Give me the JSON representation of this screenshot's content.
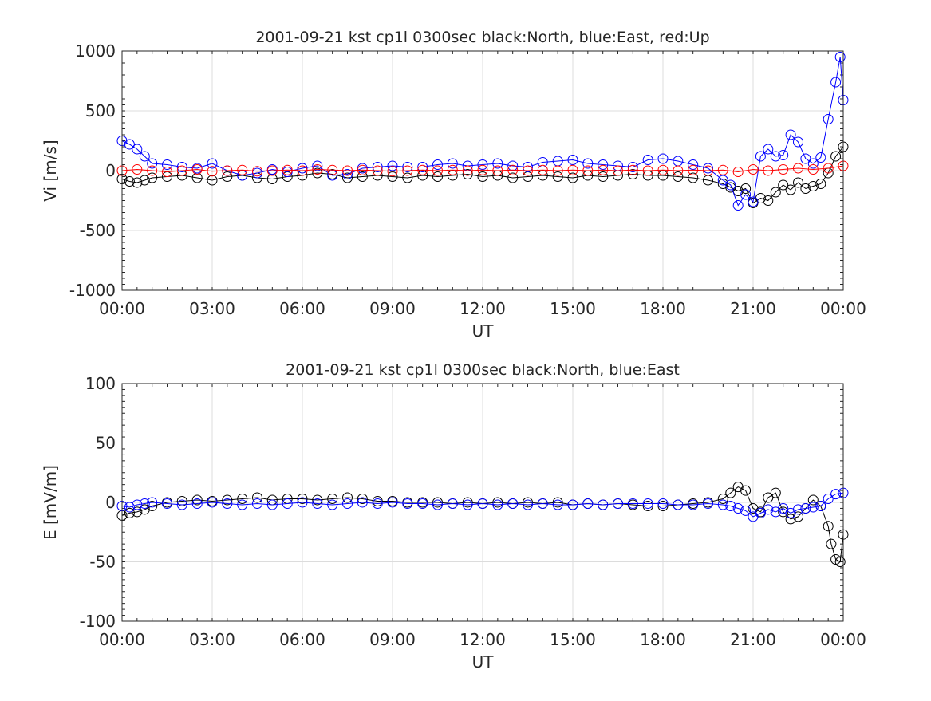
{
  "chart_data": [
    {
      "type": "line",
      "title": "2001-09-21 kst cp1l 0300sec black:North, blue:East, red:Up",
      "xlabel": "UT",
      "ylabel": "Vi [m/s]",
      "xlim": [
        0,
        24
      ],
      "ylim": [
        -1000,
        1000
      ],
      "xticks": [
        0,
        3,
        6,
        9,
        12,
        15,
        18,
        21,
        24
      ],
      "xticklabels": [
        "00:00",
        "03:00",
        "06:00",
        "09:00",
        "12:00",
        "15:00",
        "18:00",
        "21:00",
        "00:00"
      ],
      "yticks": [
        -1000,
        -500,
        0,
        500,
        1000
      ],
      "yticklabels": [
        "-1000",
        "-500",
        "0",
        "500",
        "1000"
      ],
      "grid": true,
      "series": [
        {
          "name": "North",
          "color": "#000000",
          "x": [
            0.0,
            0.25,
            0.5,
            0.75,
            1.0,
            1.5,
            2.0,
            2.5,
            3.0,
            3.5,
            4.0,
            4.5,
            5.0,
            5.5,
            6.0,
            6.5,
            7.0,
            7.5,
            8.0,
            8.5,
            9.0,
            9.5,
            10.0,
            10.5,
            11.0,
            11.5,
            12.0,
            12.5,
            13.0,
            13.5,
            14.0,
            14.5,
            15.0,
            15.5,
            16.0,
            16.5,
            17.0,
            17.5,
            18.0,
            18.5,
            19.0,
            19.5,
            20.0,
            20.25,
            20.5,
            20.75,
            21.0,
            21.25,
            21.5,
            21.75,
            22.0,
            22.25,
            22.5,
            22.75,
            23.0,
            23.25,
            23.5,
            23.75,
            24.0
          ],
          "values": [
            -70,
            -90,
            -100,
            -80,
            -60,
            -50,
            -40,
            -60,
            -80,
            -50,
            -40,
            -60,
            -70,
            -50,
            -40,
            -20,
            -30,
            -60,
            -50,
            -40,
            -50,
            -60,
            -40,
            -50,
            -40,
            -30,
            -50,
            -40,
            -60,
            -50,
            -40,
            -50,
            -60,
            -40,
            -50,
            -40,
            -30,
            -40,
            -40,
            -50,
            -60,
            -80,
            -110,
            -140,
            -170,
            -150,
            -270,
            -230,
            -250,
            -180,
            -120,
            -160,
            -100,
            -150,
            -130,
            -110,
            -20,
            120,
            200
          ]
        },
        {
          "name": "East",
          "color": "#0000ff",
          "x": [
            0.0,
            0.25,
            0.5,
            0.75,
            1.0,
            1.5,
            2.0,
            2.5,
            3.0,
            3.5,
            4.0,
            4.5,
            5.0,
            5.5,
            6.0,
            6.5,
            7.0,
            7.5,
            8.0,
            8.5,
            9.0,
            9.5,
            10.0,
            10.5,
            11.0,
            11.5,
            12.0,
            12.5,
            13.0,
            13.5,
            14.0,
            14.5,
            15.0,
            15.5,
            16.0,
            16.5,
            17.0,
            17.5,
            18.0,
            18.5,
            19.0,
            19.5,
            20.0,
            20.25,
            20.5,
            20.75,
            21.0,
            21.25,
            21.5,
            21.75,
            22.0,
            22.25,
            22.5,
            22.75,
            23.0,
            23.25,
            23.5,
            23.75,
            23.9,
            24.0
          ],
          "values": [
            250,
            220,
            180,
            120,
            60,
            50,
            30,
            20,
            60,
            0,
            -40,
            -20,
            10,
            -10,
            20,
            40,
            -40,
            -30,
            20,
            30,
            40,
            30,
            30,
            50,
            60,
            40,
            50,
            60,
            40,
            30,
            70,
            80,
            90,
            60,
            50,
            40,
            30,
            90,
            100,
            80,
            50,
            20,
            -80,
            -120,
            -290,
            -200,
            -260,
            120,
            180,
            120,
            130,
            300,
            240,
            100,
            60,
            110,
            430,
            740,
            950,
            590
          ]
        },
        {
          "name": "Up",
          "color": "#ff0000",
          "x": [
            0.0,
            0.5,
            1.0,
            1.5,
            2.0,
            2.5,
            3.0,
            3.5,
            4.0,
            4.5,
            5.0,
            5.5,
            6.0,
            6.5,
            7.0,
            7.5,
            8.0,
            8.5,
            9.0,
            9.5,
            10.0,
            10.5,
            11.0,
            11.5,
            12.0,
            12.5,
            13.0,
            13.5,
            14.0,
            14.5,
            15.0,
            15.5,
            16.0,
            16.5,
            17.0,
            17.5,
            18.0,
            18.5,
            19.0,
            19.5,
            20.0,
            20.5,
            21.0,
            21.5,
            22.0,
            22.5,
            23.0,
            23.5,
            24.0
          ],
          "values": [
            0,
            10,
            0,
            -10,
            0,
            10,
            -5,
            0,
            5,
            -5,
            0,
            5,
            0,
            10,
            5,
            0,
            5,
            0,
            -5,
            0,
            5,
            0,
            5,
            0,
            5,
            0,
            5,
            0,
            5,
            0,
            5,
            0,
            5,
            0,
            5,
            0,
            5,
            0,
            5,
            0,
            5,
            -10,
            10,
            0,
            10,
            20,
            10,
            20,
            40
          ]
        }
      ]
    },
    {
      "type": "line",
      "title": "2001-09-21 kst cp1l 0300sec black:North, blue:East",
      "xlabel": "UT",
      "ylabel": "E [mV/m]",
      "xlim": [
        0,
        24
      ],
      "ylim": [
        -100,
        100
      ],
      "xticks": [
        0,
        3,
        6,
        9,
        12,
        15,
        18,
        21,
        24
      ],
      "xticklabels": [
        "00:00",
        "03:00",
        "06:00",
        "09:00",
        "12:00",
        "15:00",
        "18:00",
        "21:00",
        "00:00"
      ],
      "yticks": [
        -100,
        -50,
        0,
        50,
        100
      ],
      "yticklabels": [
        "-100",
        "-50",
        "0",
        "50",
        "100"
      ],
      "grid": true,
      "series": [
        {
          "name": "North",
          "color": "#000000",
          "x": [
            0.0,
            0.25,
            0.5,
            0.75,
            1.0,
            1.5,
            2.0,
            2.5,
            3.0,
            3.5,
            4.0,
            4.5,
            5.0,
            5.5,
            6.0,
            6.5,
            7.0,
            7.5,
            8.0,
            8.5,
            9.0,
            9.5,
            10.0,
            10.5,
            11.0,
            11.5,
            12.0,
            12.5,
            13.0,
            13.5,
            14.0,
            14.5,
            15.0,
            15.5,
            16.0,
            16.5,
            17.0,
            17.5,
            18.0,
            18.5,
            19.0,
            19.5,
            20.0,
            20.25,
            20.5,
            20.75,
            21.0,
            21.25,
            21.5,
            21.75,
            22.0,
            22.25,
            22.5,
            22.75,
            23.0,
            23.25,
            23.5,
            23.6,
            23.75,
            23.9,
            24.0
          ],
          "values": [
            -11,
            -9,
            -8,
            -6,
            -3,
            0,
            1,
            2,
            1,
            2,
            3,
            4,
            2,
            3,
            3,
            2,
            3,
            4,
            3,
            1,
            1,
            0,
            0,
            0,
            -1,
            0,
            -1,
            0,
            -1,
            0,
            -1,
            0,
            -2,
            -1,
            -2,
            -1,
            -2,
            -3,
            -3,
            -2,
            -1,
            0,
            3,
            8,
            13,
            10,
            -5,
            -8,
            4,
            8,
            -8,
            -14,
            -12,
            -5,
            2,
            -3,
            -20,
            -35,
            -48,
            -50,
            -27
          ]
        },
        {
          "name": "East",
          "color": "#0000ff",
          "x": [
            0.0,
            0.25,
            0.5,
            0.75,
            1.0,
            1.5,
            2.0,
            2.5,
            3.0,
            3.5,
            4.0,
            4.5,
            5.0,
            5.5,
            6.0,
            6.5,
            7.0,
            7.5,
            8.0,
            8.5,
            9.0,
            9.5,
            10.0,
            10.5,
            11.0,
            11.5,
            12.0,
            12.5,
            13.0,
            13.5,
            14.0,
            14.5,
            15.0,
            15.5,
            16.0,
            16.5,
            17.0,
            17.5,
            18.0,
            18.5,
            19.0,
            19.5,
            20.0,
            20.25,
            20.5,
            20.75,
            21.0,
            21.25,
            21.5,
            21.75,
            22.0,
            22.25,
            22.5,
            22.75,
            23.0,
            23.25,
            23.5,
            23.75,
            24.0
          ],
          "values": [
            -3,
            -4,
            -2,
            -1,
            0,
            -1,
            -2,
            -1,
            0,
            -1,
            -2,
            -1,
            -2,
            -1,
            0,
            -1,
            -2,
            -1,
            0,
            -1,
            0,
            -1,
            -1,
            -2,
            -1,
            -2,
            -1,
            -2,
            -1,
            -2,
            -1,
            -2,
            -2,
            -1,
            -2,
            -1,
            -1,
            -1,
            -1,
            -2,
            -2,
            -1,
            -2,
            -3,
            -5,
            -7,
            -12,
            -9,
            -6,
            -8,
            -5,
            -9,
            -6,
            -5,
            -4,
            -3,
            3,
            7,
            8
          ]
        }
      ]
    }
  ]
}
